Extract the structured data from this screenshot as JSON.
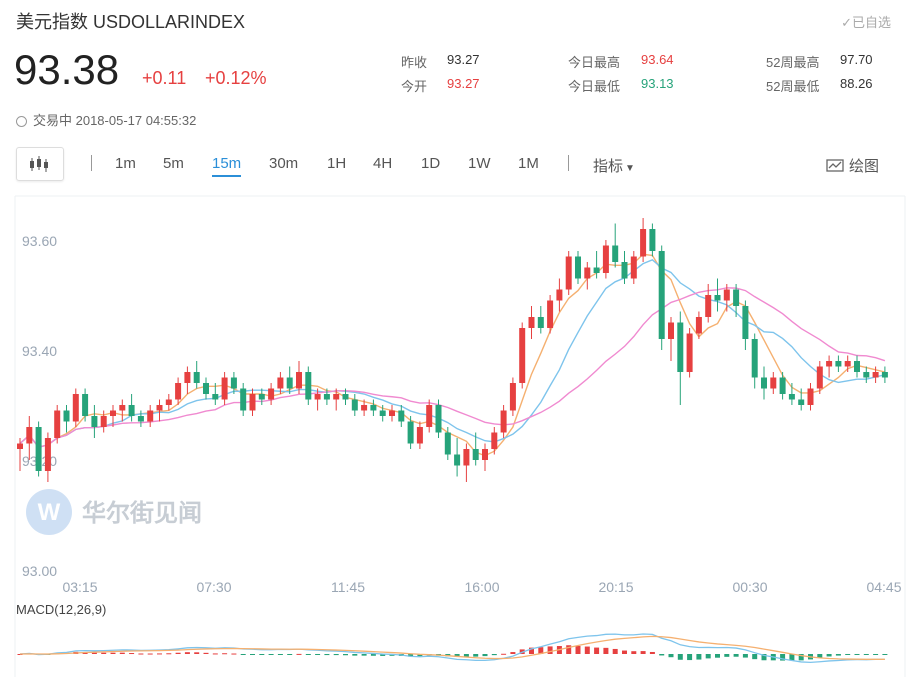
{
  "header": {
    "title": "美元指数 USDOLLARINDEX",
    "favorite_label": "✓已自选",
    "price": "93.38",
    "change": "+0.11",
    "change_pct": "+0.12%",
    "stats": [
      {
        "label": "昨收",
        "value": "93.27",
        "color": "dark"
      },
      {
        "label": "今开",
        "value": "93.27",
        "color": "red"
      },
      {
        "label": "今日最高",
        "value": "93.64",
        "color": "red"
      },
      {
        "label": "今日最低",
        "value": "93.13",
        "color": "green"
      },
      {
        "label": "52周最高",
        "value": "97.70",
        "color": "dark"
      },
      {
        "label": "52周最低",
        "value": "88.26",
        "color": "dark"
      }
    ],
    "status_text": "交易中 2018-05-17 04:55:32"
  },
  "toolbar": {
    "periods": [
      "1m",
      "5m",
      "15m",
      "30m",
      "1H",
      "4H",
      "1D",
      "1W",
      "1M"
    ],
    "active_period": "15m",
    "indicator_label": "指标",
    "draw_label": "绘图"
  },
  "watermark": "华尔街见闻",
  "colors": {
    "up": "#e64040",
    "down": "#26a37a",
    "ma_orange": "#f5b070",
    "ma_blue": "#7ec4ec",
    "ma_pink": "#f08ad0",
    "accent": "#2b8fd8"
  },
  "chart_data": {
    "type": "candlestick",
    "y_ticks": [
      "93.60",
      "93.40",
      "93.20",
      "93.00"
    ],
    "y_tick_values": [
      93.6,
      93.4,
      93.2,
      93.0
    ],
    "ylim": [
      93.0,
      93.65
    ],
    "x_ticks": [
      "03:15",
      "07:30",
      "11:45",
      "16:00",
      "20:15",
      "00:30",
      "04:45"
    ],
    "macd_label": "MACD(12,26,9)",
    "candles": [
      [
        93.22,
        93.24,
        93.18,
        93.23
      ],
      [
        93.23,
        93.28,
        93.2,
        93.26
      ],
      [
        93.26,
        93.27,
        93.17,
        93.18
      ],
      [
        93.18,
        93.25,
        93.16,
        93.24
      ],
      [
        93.24,
        93.3,
        93.23,
        93.29
      ],
      [
        93.29,
        93.3,
        93.25,
        93.27
      ],
      [
        93.27,
        93.33,
        93.26,
        93.32
      ],
      [
        93.32,
        93.33,
        93.27,
        93.28
      ],
      [
        93.28,
        93.3,
        93.24,
        93.26
      ],
      [
        93.26,
        93.29,
        93.25,
        93.28
      ],
      [
        93.28,
        93.3,
        93.26,
        93.29
      ],
      [
        93.29,
        93.31,
        93.27,
        93.3
      ],
      [
        93.3,
        93.32,
        93.27,
        93.28
      ],
      [
        93.28,
        93.29,
        93.26,
        93.27
      ],
      [
        93.27,
        93.3,
        93.26,
        93.29
      ],
      [
        93.29,
        93.31,
        93.27,
        93.3
      ],
      [
        93.3,
        93.32,
        93.29,
        93.31
      ],
      [
        93.31,
        93.35,
        93.3,
        93.34
      ],
      [
        93.34,
        93.37,
        93.32,
        93.36
      ],
      [
        93.36,
        93.38,
        93.33,
        93.34
      ],
      [
        93.34,
        93.35,
        93.31,
        93.32
      ],
      [
        93.32,
        93.34,
        93.3,
        93.31
      ],
      [
        93.31,
        93.36,
        93.3,
        93.35
      ],
      [
        93.35,
        93.36,
        93.32,
        93.33
      ],
      [
        93.33,
        93.34,
        93.28,
        93.29
      ],
      [
        93.29,
        93.33,
        93.28,
        93.32
      ],
      [
        93.32,
        93.33,
        93.3,
        93.31
      ],
      [
        93.31,
        93.34,
        93.3,
        93.33
      ],
      [
        93.33,
        93.36,
        93.32,
        93.35
      ],
      [
        93.35,
        93.37,
        93.32,
        93.33
      ],
      [
        93.33,
        93.38,
        93.32,
        93.36
      ],
      [
        93.36,
        93.37,
        93.3,
        93.31
      ],
      [
        93.31,
        93.33,
        93.29,
        93.32
      ],
      [
        93.32,
        93.33,
        93.3,
        93.31
      ],
      [
        93.31,
        93.33,
        93.29,
        93.32
      ],
      [
        93.32,
        93.33,
        93.3,
        93.31
      ],
      [
        93.31,
        93.32,
        93.28,
        93.29
      ],
      [
        93.29,
        93.31,
        93.28,
        93.3
      ],
      [
        93.3,
        93.31,
        93.28,
        93.29
      ],
      [
        93.29,
        93.3,
        93.27,
        93.28
      ],
      [
        93.28,
        93.3,
        93.27,
        93.29
      ],
      [
        93.29,
        93.3,
        93.26,
        93.27
      ],
      [
        93.27,
        93.28,
        93.22,
        93.23
      ],
      [
        93.23,
        93.27,
        93.22,
        93.26
      ],
      [
        93.26,
        93.31,
        93.25,
        93.3
      ],
      [
        93.3,
        93.31,
        93.24,
        93.25
      ],
      [
        93.25,
        93.26,
        93.2,
        93.21
      ],
      [
        93.21,
        93.24,
        93.17,
        93.19
      ],
      [
        93.19,
        93.23,
        93.16,
        93.22
      ],
      [
        93.22,
        93.25,
        93.19,
        93.2
      ],
      [
        93.2,
        93.23,
        93.18,
        93.22
      ],
      [
        93.22,
        93.26,
        93.21,
        93.25
      ],
      [
        93.25,
        93.3,
        93.24,
        93.29
      ],
      [
        93.29,
        93.35,
        93.28,
        93.34
      ],
      [
        93.34,
        93.45,
        93.33,
        93.44
      ],
      [
        93.44,
        93.48,
        93.42,
        93.46
      ],
      [
        93.46,
        93.48,
        93.43,
        93.44
      ],
      [
        93.44,
        93.5,
        93.43,
        93.49
      ],
      [
        93.49,
        93.53,
        93.47,
        93.51
      ],
      [
        93.51,
        93.58,
        93.5,
        93.57
      ],
      [
        93.57,
        93.58,
        93.52,
        93.53
      ],
      [
        93.53,
        93.56,
        93.51,
        93.55
      ],
      [
        93.55,
        93.58,
        93.53,
        93.54
      ],
      [
        93.54,
        93.6,
        93.53,
        93.59
      ],
      [
        93.59,
        93.63,
        93.55,
        93.56
      ],
      [
        93.56,
        93.58,
        93.52,
        93.53
      ],
      [
        93.53,
        93.58,
        93.52,
        93.57
      ],
      [
        93.57,
        93.64,
        93.56,
        93.62
      ],
      [
        93.62,
        93.63,
        93.57,
        93.58
      ],
      [
        93.58,
        93.59,
        93.4,
        93.42
      ],
      [
        93.42,
        93.46,
        93.38,
        93.45
      ],
      [
        93.45,
        93.47,
        93.3,
        93.36
      ],
      [
        93.36,
        93.44,
        93.35,
        93.43
      ],
      [
        93.43,
        93.47,
        93.42,
        93.46
      ],
      [
        93.46,
        93.52,
        93.45,
        93.5
      ],
      [
        93.5,
        93.53,
        93.47,
        93.49
      ],
      [
        93.49,
        93.52,
        93.47,
        93.51
      ],
      [
        93.51,
        93.52,
        93.46,
        93.48
      ],
      [
        93.48,
        93.49,
        93.4,
        93.42
      ],
      [
        93.42,
        93.43,
        93.33,
        93.35
      ],
      [
        93.35,
        93.37,
        93.31,
        93.33
      ],
      [
        93.33,
        93.36,
        93.32,
        93.35
      ],
      [
        93.35,
        93.36,
        93.31,
        93.32
      ],
      [
        93.32,
        93.34,
        93.3,
        93.31
      ],
      [
        93.31,
        93.33,
        93.29,
        93.3
      ],
      [
        93.3,
        93.34,
        93.29,
        93.33
      ],
      [
        93.33,
        93.38,
        93.32,
        93.37
      ],
      [
        93.37,
        93.39,
        93.35,
        93.38
      ],
      [
        93.38,
        93.39,
        93.36,
        93.37
      ],
      [
        93.37,
        93.39,
        93.36,
        93.38
      ],
      [
        93.38,
        93.39,
        93.35,
        93.36
      ],
      [
        93.36,
        93.37,
        93.34,
        93.35
      ],
      [
        93.35,
        93.37,
        93.34,
        93.36
      ],
      [
        93.36,
        93.37,
        93.34,
        93.35
      ]
    ]
  }
}
